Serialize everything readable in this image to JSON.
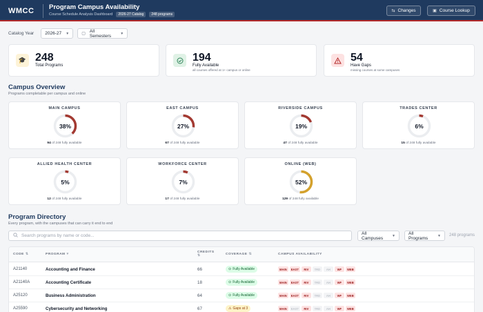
{
  "header": {
    "logo": "WMCC",
    "title": "Program Campus Availability",
    "subtitle": "Course Schedule Analysis Dashboard",
    "catalog_pill": "2026-27 Catalog",
    "programs_pill": "248 programs",
    "changes_label": "Changes",
    "lookup_label": "Course Lookup"
  },
  "filters": {
    "catalog_label": "Catalog Year",
    "catalog_value": "2026-27",
    "semester_value": "All Semesters"
  },
  "stats": [
    {
      "value": "248",
      "label": "Total Programs",
      "sub": ""
    },
    {
      "value": "194",
      "label": "Fully Available",
      "sub": "all courses offered at 1+ campus or online"
    },
    {
      "value": "54",
      "label": "Have Gaps",
      "sub": "missing courses at some campuses"
    }
  ],
  "campus_overview": {
    "title": "Campus Overview",
    "subtitle": "Programs completable per campus and online",
    "colors": {
      "low": "#a33a32",
      "online": "#d4a12c",
      "track": "#ebedf0"
    },
    "campuses": [
      {
        "name": "MAIN CAMPUS",
        "percent": 38,
        "pct_label": "38%",
        "count": "94",
        "foot": " of 248 fully available"
      },
      {
        "name": "EAST CAMPUS",
        "percent": 27,
        "pct_label": "27%",
        "count": "67",
        "foot": " of 248 fully available"
      },
      {
        "name": "RIVERSIDE CAMPUS",
        "percent": 19,
        "pct_label": "19%",
        "count": "47",
        "foot": " of 248 fully available"
      },
      {
        "name": "TRADES CENTER",
        "percent": 6,
        "pct_label": "6%",
        "count": "15",
        "foot": " of 248 fully available"
      },
      {
        "name": "ALLIED HEALTH CENTER",
        "percent": 5,
        "pct_label": "5%",
        "count": "12",
        "foot": " of 248 fully available"
      },
      {
        "name": "WORKFORCE CENTER",
        "percent": 7,
        "pct_label": "7%",
        "count": "17",
        "foot": " of 248 fully available"
      },
      {
        "name": "ONLINE (WEB)",
        "percent": 52,
        "pct_label": "52%",
        "count": "129",
        "foot": " of 248 fully available"
      }
    ]
  },
  "directory": {
    "title": "Program Directory",
    "subtitle": "Every program, with the campuses that can carry it end to end",
    "search_placeholder": "Search programs by name or code...",
    "campus_filter": "All Campuses",
    "program_filter": "All Programs",
    "count": "248 programs",
    "columns": {
      "code": "CODE",
      "program": "PROGRAM",
      "credits": "CREDITS",
      "coverage": "COVERAGE",
      "availability": "CAMPUS AVAILABILITY"
    },
    "rows": [
      {
        "code": "A21140",
        "program": "Accounting and Finance",
        "credits": "66",
        "coverage": "Fully Available",
        "status": "full",
        "tags": [
          {
            "t": "MAIN",
            "on": true
          },
          {
            "t": "EAST",
            "on": true
          },
          {
            "t": "RIV",
            "on": true
          },
          {
            "t": "TRD",
            "on": false
          },
          {
            "t": "AH",
            "on": false
          },
          {
            "t": "WF",
            "on": true
          },
          {
            "t": "WEB",
            "on": true
          }
        ]
      },
      {
        "code": "A21140A",
        "program": "Accounting Certificate",
        "credits": "18",
        "coverage": "Fully Available",
        "status": "full",
        "tags": [
          {
            "t": "MAIN",
            "on": true
          },
          {
            "t": "EAST",
            "on": true
          },
          {
            "t": "RIV",
            "on": true
          },
          {
            "t": "TRD",
            "on": false
          },
          {
            "t": "AH",
            "on": false
          },
          {
            "t": "WF",
            "on": true
          },
          {
            "t": "WEB",
            "on": true
          }
        ]
      },
      {
        "code": "A25120",
        "program": "Business Administration",
        "credits": "64",
        "coverage": "Fully Available",
        "status": "full",
        "tags": [
          {
            "t": "MAIN",
            "on": true
          },
          {
            "t": "EAST",
            "on": true
          },
          {
            "t": "RIV",
            "on": true
          },
          {
            "t": "TRD",
            "on": false
          },
          {
            "t": "AH",
            "on": false
          },
          {
            "t": "WF",
            "on": true
          },
          {
            "t": "WEB",
            "on": true
          }
        ]
      },
      {
        "code": "A25590",
        "program": "Cybersecurity and Networking",
        "credits": "67",
        "coverage": "Gaps at 3",
        "status": "gap",
        "tags": [
          {
            "t": "MAIN",
            "on": true
          },
          {
            "t": "EAST",
            "on": false
          },
          {
            "t": "RIV",
            "on": true
          },
          {
            "t": "TRD",
            "on": false
          },
          {
            "t": "AH",
            "on": false
          },
          {
            "t": "WF",
            "on": true
          },
          {
            "t": "WEB",
            "on": true
          }
        ]
      }
    ]
  }
}
